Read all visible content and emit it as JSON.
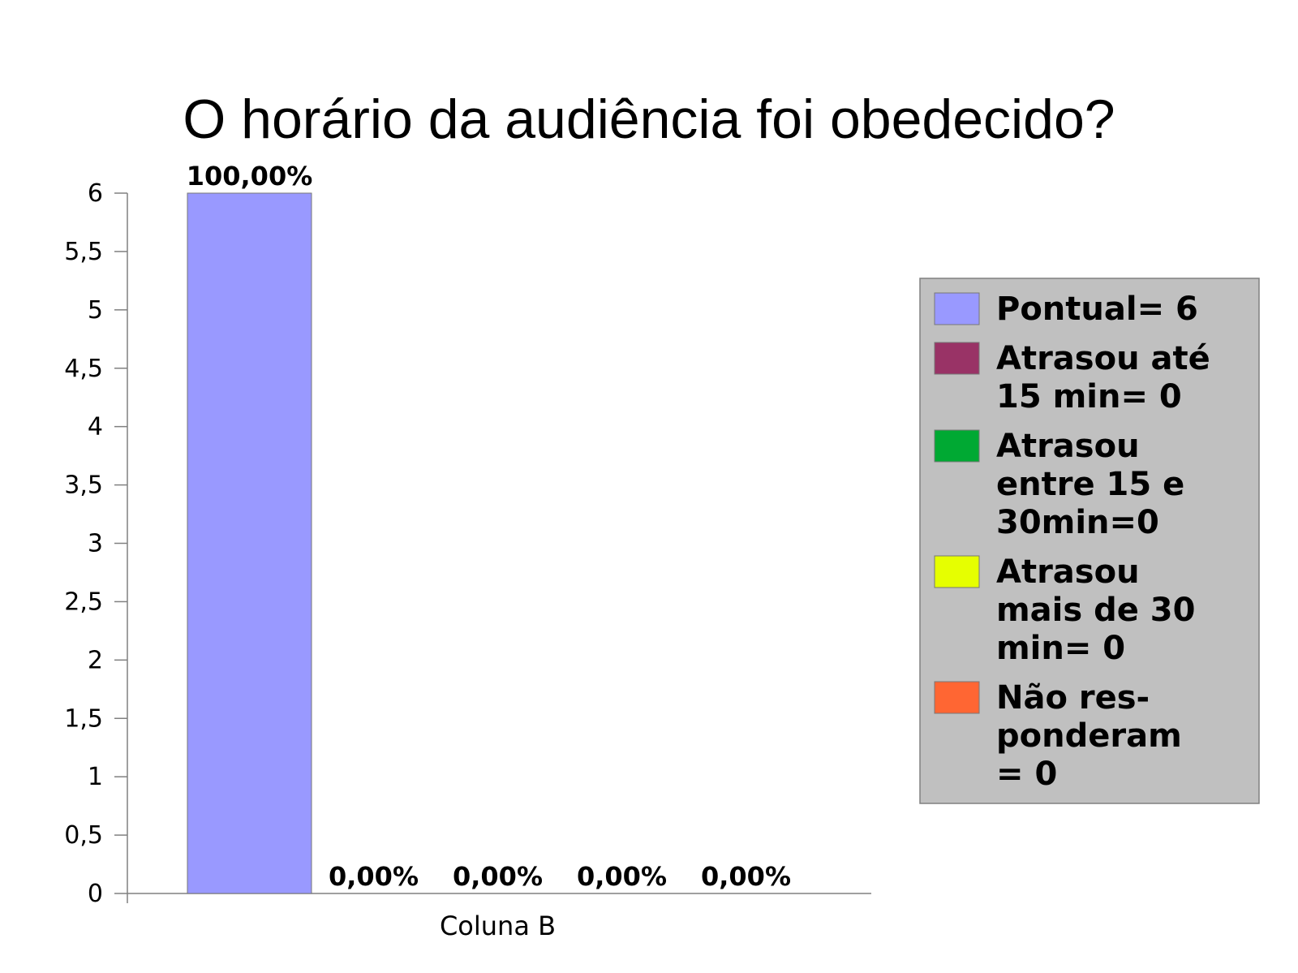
{
  "chart_data": {
    "type": "bar",
    "title": "O horário da audiência foi obedecido?",
    "categories": [
      "Coluna B"
    ],
    "series": [
      {
        "name": "Pontual= 6",
        "legend_lines": [
          "Pontual= 6"
        ],
        "color": "#9999ff",
        "values": [
          6
        ],
        "data_label": "100,00%"
      },
      {
        "name": "Atrasou até 15 min= 0",
        "legend_lines": [
          "Atrasou até",
          "15 min= 0"
        ],
        "color": "#993366",
        "values": [
          0
        ],
        "data_label": "0,00%"
      },
      {
        "name": "Atrasou entre 15 e 30min=0",
        "legend_lines": [
          "Atrasou",
          "entre 15 e",
          "30min=0"
        ],
        "color": "#00a933",
        "values": [
          0
        ],
        "data_label": "0,00%"
      },
      {
        "name": "Atrasou mais de 30 min= 0",
        "legend_lines": [
          "Atrasou",
          "mais de 30",
          "min= 0"
        ],
        "color": "#e6ff00",
        "values": [
          0
        ],
        "data_label": "0,00%"
      },
      {
        "name": "Não res- ponderam = 0",
        "legend_lines": [
          "Não res-",
          "ponderam",
          "= 0"
        ],
        "color": "#ff6633",
        "values": [
          0
        ],
        "data_label": "0,00%"
      }
    ],
    "ylim": [
      0,
      6
    ],
    "yticks": [
      "0",
      "0,5",
      "1",
      "1,5",
      "2",
      "2,5",
      "3",
      "3,5",
      "4",
      "4,5",
      "5",
      "5,5",
      "6"
    ],
    "xlabel": "",
    "ylabel": "",
    "grid": false,
    "legend_position": "right",
    "legend_background": "#c0c0c0"
  }
}
